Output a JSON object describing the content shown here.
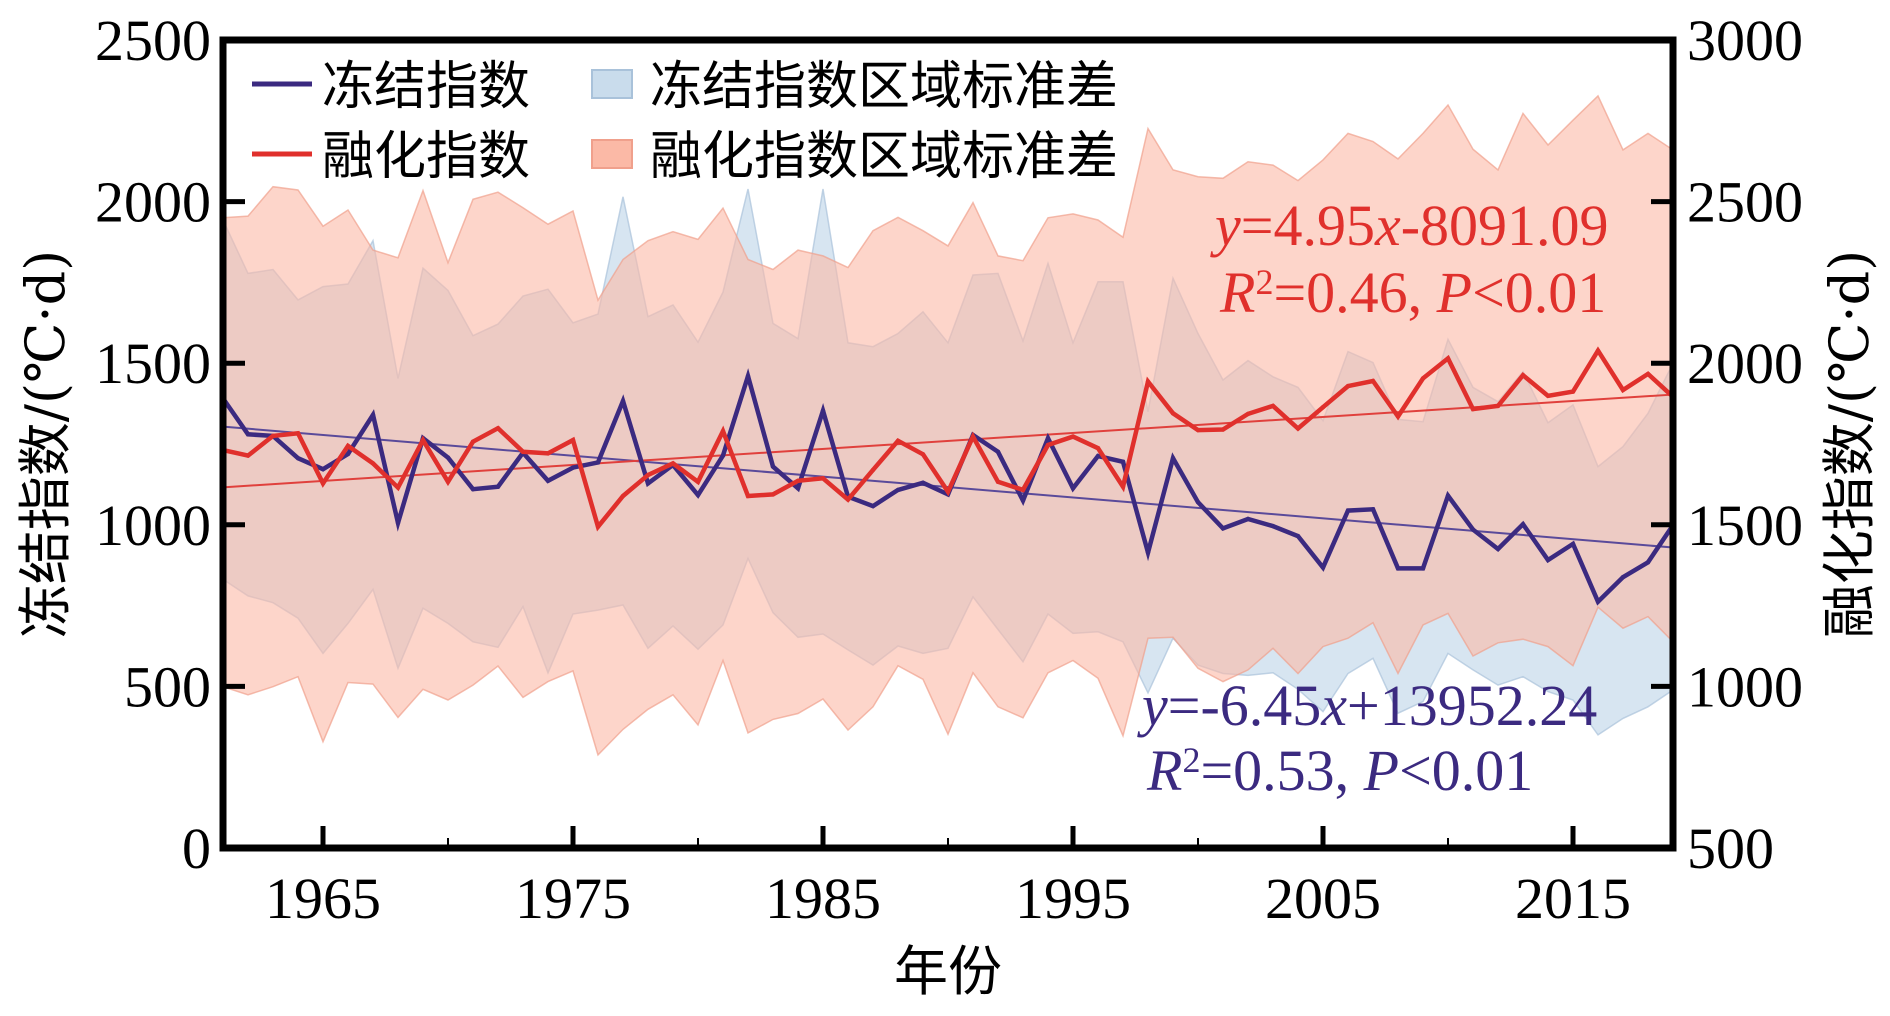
{
  "chart_data": {
    "type": "line",
    "title": "",
    "xlabel": "年份",
    "ylabel_left": "冻结指数/(℃·d)",
    "ylabel_right": "融化指数/(℃·d)",
    "xlim": [
      1961,
      2019
    ],
    "ylim_left": [
      0,
      2500
    ],
    "ylim_right": [
      500,
      3000
    ],
    "x_ticks": [
      1965,
      1975,
      1985,
      1995,
      2005,
      2015
    ],
    "x_tick_labels": [
      "1965",
      "1975",
      "1985",
      "1995",
      "2005",
      "2015"
    ],
    "y_ticks_left": [
      0,
      500,
      1000,
      1500,
      2000,
      2500
    ],
    "y_tick_labels_left": [
      "0",
      "500",
      "1000",
      "1500",
      "2000",
      "2500"
    ],
    "y_ticks_right": [
      500,
      1000,
      1500,
      2000,
      2500,
      3000
    ],
    "y_tick_labels_right": [
      "500",
      "1000",
      "1500",
      "2000",
      "2500",
      "3000"
    ],
    "grid": false,
    "legend_position": "top-left",
    "x": [
      1961,
      1962,
      1963,
      1964,
      1965,
      1966,
      1967,
      1968,
      1969,
      1970,
      1971,
      1972,
      1973,
      1974,
      1975,
      1976,
      1977,
      1978,
      1979,
      1980,
      1981,
      1982,
      1983,
      1984,
      1985,
      1986,
      1987,
      1988,
      1989,
      1990,
      1991,
      1992,
      1993,
      1994,
      1995,
      1996,
      1997,
      1998,
      1999,
      2000,
      2001,
      2002,
      2003,
      2004,
      2005,
      2006,
      2007,
      2008,
      2009,
      2010,
      2011,
      2012,
      2013,
      2014,
      2015,
      2016,
      2017,
      2018,
      2019
    ],
    "series": [
      {
        "name": "冻结指数",
        "axis": "left",
        "color": "#3b2a80",
        "values": [
          1391,
          1280,
          1275,
          1206,
          1172,
          1219,
          1340,
          1006,
          1268,
          1208,
          1110,
          1118,
          1223,
          1136,
          1177,
          1193,
          1383,
          1128,
          1185,
          1092,
          1214,
          1460,
          1180,
          1113,
          1353,
          1087,
          1058,
          1108,
          1130,
          1094,
          1278,
          1226,
          1075,
          1268,
          1113,
          1213,
          1195,
          914,
          1206,
          1070,
          989,
          1018,
          996,
          965,
          868,
          1044,
          1048,
          865,
          865,
          1090,
          985,
          925,
          1002,
          891,
          941,
          762,
          838,
          884,
          999
        ]
      },
      {
        "name": "融化指数",
        "axis": "right",
        "color": "#e0302c",
        "values": [
          1731,
          1714,
          1775,
          1783,
          1628,
          1744,
          1690,
          1615,
          1762,
          1633,
          1757,
          1799,
          1726,
          1721,
          1762,
          1494,
          1589,
          1654,
          1690,
          1633,
          1790,
          1589,
          1594,
          1636,
          1644,
          1578,
          1670,
          1760,
          1718,
          1602,
          1773,
          1633,
          1608,
          1747,
          1773,
          1737,
          1618,
          1943,
          1845,
          1793,
          1795,
          1843,
          1868,
          1798,
          1864,
          1929,
          1945,
          1835,
          1953,
          2015,
          1858,
          1868,
          1963,
          1899,
          1912,
          2039,
          1917,
          1967,
          1896
        ]
      }
    ],
    "bands": [
      {
        "name": "冻结指数区域标准差",
        "axis": "left",
        "color": "#c9dcec",
        "upper": [
          1943,
          1778,
          1790,
          1696,
          1737,
          1745,
          1879,
          1453,
          1794,
          1725,
          1585,
          1621,
          1708,
          1729,
          1625,
          1652,
          2015,
          1644,
          1680,
          1565,
          1720,
          2039,
          1623,
          1576,
          2039,
          1563,
          1551,
          1592,
          1659,
          1563,
          1773,
          1778,
          1569,
          1809,
          1563,
          1752,
          1752,
          1350,
          1763,
          1592,
          1448,
          1508,
          1458,
          1425,
          1322,
          1536,
          1502,
          1326,
          1319,
          1574,
          1425,
          1381,
          1474,
          1316,
          1371,
          1180,
          1242,
          1345,
          1500
        ],
        "lower": [
          831,
          780,
          759,
          711,
          602,
          695,
          800,
          556,
          742,
          695,
          638,
          621,
          747,
          542,
          724,
          736,
          752,
          618,
          687,
          615,
          690,
          896,
          728,
          652,
          662,
          613,
          566,
          625,
          602,
          618,
          777,
          676,
          576,
          724,
          664,
          669,
          638,
          480,
          649,
          566,
          540,
          534,
          542,
          491,
          422,
          540,
          587,
          417,
          453,
          602,
          551,
          504,
          530,
          484,
          458,
          350,
          401,
          437,
          489
        ]
      },
      {
        "name": "融化指数区域标准差",
        "axis": "right",
        "color": "#fbb9a6",
        "upper": [
          2450,
          2455,
          2546,
          2536,
          2424,
          2474,
          2350,
          2326,
          2534,
          2311,
          2507,
          2529,
          2481,
          2430,
          2471,
          2195,
          2321,
          2379,
          2407,
          2383,
          2480,
          2321,
          2290,
          2350,
          2332,
          2296,
          2410,
          2451,
          2410,
          2363,
          2497,
          2332,
          2317,
          2450,
          2462,
          2443,
          2390,
          2726,
          2598,
          2577,
          2572,
          2623,
          2613,
          2565,
          2629,
          2711,
          2686,
          2632,
          2711,
          2799,
          2662,
          2598,
          2773,
          2675,
          2752,
          2827,
          2660,
          2711,
          2660
        ],
        "lower": [
          999,
          974,
          999,
          1030,
          829,
          1012,
          1007,
          904,
          991,
          958,
          1004,
          1063,
          966,
          1015,
          1048,
          788,
          867,
          929,
          974,
          881,
          1080,
          856,
          898,
          916,
          961,
          865,
          937,
          1064,
          1022,
          852,
          1042,
          937,
          903,
          1042,
          1080,
          1025,
          847,
          1149,
          1152,
          1056,
          1015,
          1051,
          1118,
          1040,
          1123,
          1149,
          1197,
          1040,
          1190,
          1226,
          1094,
          1135,
          1146,
          1123,
          1064,
          1245,
          1180,
          1216,
          1138
        ]
      }
    ],
    "trend_lines": [
      {
        "series": "冻结指数",
        "slope": -6.45,
        "intercept": 13952.24,
        "color": "#5a4a9a"
      },
      {
        "series": "融化指数",
        "slope": 4.95,
        "intercept": -8091.09,
        "color": "#e0403c"
      }
    ],
    "annotations": [
      {
        "series": "融化指数",
        "color": "#e0302c",
        "line1": {
          "y": "y",
          "eq": "=4.95",
          "x": "x",
          "rest": "-8091.09"
        },
        "line2": {
          "R": "R",
          "sup": "2",
          "mid": "=0.46, ",
          "P": "P",
          "end": "<0.01"
        }
      },
      {
        "series": "冻结指数",
        "color": "#3b2a80",
        "line1": {
          "y": "y",
          "eq": "=-6.45",
          "x": "x",
          "rest": "+13952.24"
        },
        "line2": {
          "R": "R",
          "sup": "2",
          "mid": "=0.53, ",
          "P": "P",
          "end": "<0.01"
        }
      }
    ],
    "legend": [
      {
        "label": "冻结指数",
        "kind": "line",
        "color": "#3b2a80"
      },
      {
        "label": "冻结指数区域标准差",
        "kind": "patch",
        "color": "#c9dcec"
      },
      {
        "label": "融化指数",
        "kind": "line",
        "color": "#e0302c"
      },
      {
        "label": "融化指数区域标准差",
        "kind": "patch",
        "color": "#fbb9a6"
      }
    ]
  }
}
